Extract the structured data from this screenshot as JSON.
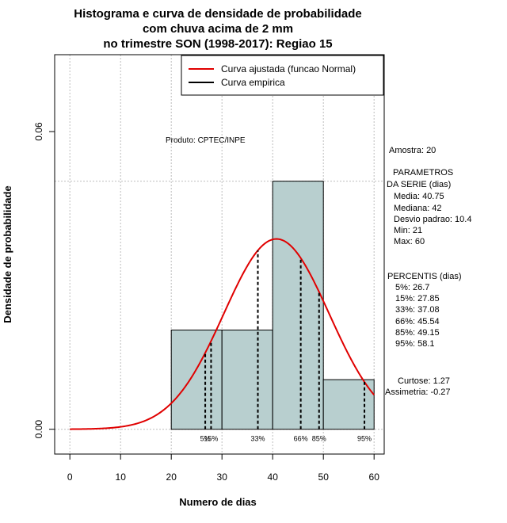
{
  "chart_data": {
    "type": "bar",
    "title": [
      "Histograma e curva de densidade de probabilidade",
      "com chuva acima de 2 mm",
      "no trimestre SON (1998-2017): Regiao 15"
    ],
    "xlabel": "Numero de dias",
    "ylabel": "Densidade de probabilidade",
    "xlim": [
      -3,
      62
    ],
    "ylim": [
      -0.005,
      0.0755
    ],
    "x_ticks": [
      0,
      10,
      20,
      30,
      40,
      50,
      60
    ],
    "y_ticks": [
      0.0,
      0.06
    ],
    "y_tick_labels": [
      "0.00",
      "0.06"
    ],
    "grid": true,
    "bins": [
      {
        "x0": 20,
        "x1": 30,
        "density": 0.02
      },
      {
        "x0": 30,
        "x1": 40,
        "density": 0.02
      },
      {
        "x0": 40,
        "x1": 50,
        "density": 0.05
      },
      {
        "x0": 50,
        "x1": 60,
        "density": 0.01
      }
    ],
    "bar_color": "#b8cfcf",
    "normal_curve": {
      "mean": 40.75,
      "sd": 10.4,
      "x_from": 0,
      "x_to": 60,
      "color": "#e00000"
    },
    "percentile_lines": [
      {
        "label": "5%",
        "x": 26.7
      },
      {
        "label": "15%",
        "x": 27.85
      },
      {
        "label": "33%",
        "x": 37.08
      },
      {
        "label": "66%",
        "x": 45.54
      },
      {
        "label": "85%",
        "x": 49.15
      },
      {
        "label": "95%",
        "x": 58.1
      }
    ],
    "legend": {
      "position": "top-right",
      "entries": [
        {
          "label": "Curva ajustada (funcao Normal)",
          "color": "#e00000"
        },
        {
          "label": "Curva empirica",
          "color": "#000000"
        }
      ]
    },
    "annotation": "Produto: CPTEC/INPE"
  },
  "stats_panel": {
    "sample": "Amostra: 20",
    "params_title_1": "PARAMETROS",
    "params_title_2": "DA SERIE (dias)",
    "params": [
      "Media: 40.75",
      "Mediana: 42",
      "Desvio padrao: 10.4",
      "Min: 21",
      "Max: 60"
    ],
    "percentis_title": "PERCENTIS (dias)",
    "percentis": [
      "5%: 26.7",
      "15%: 27.85",
      "33%: 37.08",
      "66%: 45.54",
      "85%: 49.15",
      "95%: 58.1"
    ],
    "curtose": "Curtose: 1.27",
    "assimetria": "Assimetria: -0.27"
  }
}
